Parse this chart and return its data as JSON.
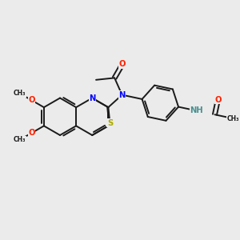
{
  "bg": "#ebebeb",
  "bond_color": "#1a1a1a",
  "atom_colors": {
    "N": "#0000ff",
    "O": "#ff2200",
    "S": "#aaaa00",
    "H": "#4a9090",
    "C": "#1a1a1a"
  },
  "lw": 1.4,
  "fs": 7.2,
  "figsize": [
    3.0,
    3.0
  ],
  "dpi": 100,
  "xlim": [
    0,
    10
  ],
  "ylim": [
    0,
    10
  ]
}
